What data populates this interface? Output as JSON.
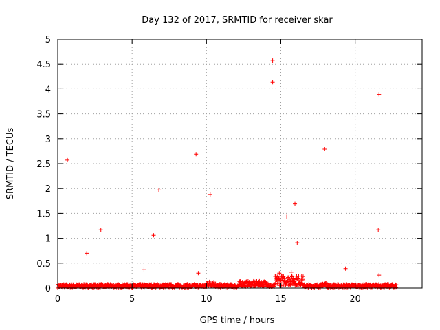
{
  "chart_data": {
    "type": "scatter",
    "title": "Day 132 of 2017, SRMTID for receiver skar",
    "xlabel": "GPS time / hours",
    "ylabel": "SRMTID / TECUs",
    "xlim": [
      0,
      24.5
    ],
    "ylim": [
      0,
      5
    ],
    "x_ticks": [
      0,
      5,
      10,
      15,
      20
    ],
    "y_ticks": [
      0,
      0.5,
      1,
      1.5,
      2,
      2.5,
      3,
      3.5,
      4,
      4.5,
      5
    ],
    "x_tick_labels": [
      "0",
      "5",
      "10",
      "15",
      "20"
    ],
    "y_tick_labels": [
      "0",
      "0.5",
      "1",
      "1.5",
      "2",
      "2.5",
      "3",
      "3.5",
      "4",
      "4.5",
      "5"
    ],
    "grid": true,
    "marker": "plus",
    "color": "#ff0000",
    "outliers": [
      {
        "x": 0.65,
        "y": 2.57
      },
      {
        "x": 1.95,
        "y": 0.7
      },
      {
        "x": 2.9,
        "y": 1.17
      },
      {
        "x": 5.8,
        "y": 0.37
      },
      {
        "x": 6.45,
        "y": 1.06
      },
      {
        "x": 6.8,
        "y": 1.97
      },
      {
        "x": 9.3,
        "y": 2.69
      },
      {
        "x": 9.45,
        "y": 0.3
      },
      {
        "x": 10.25,
        "y": 1.88
      },
      {
        "x": 14.45,
        "y": 4.57
      },
      {
        "x": 14.45,
        "y": 4.14
      },
      {
        "x": 15.4,
        "y": 1.43
      },
      {
        "x": 15.95,
        "y": 1.69
      },
      {
        "x": 16.1,
        "y": 0.91
      },
      {
        "x": 17.95,
        "y": 2.79
      },
      {
        "x": 19.35,
        "y": 0.39
      },
      {
        "x": 21.6,
        "y": 3.89
      },
      {
        "x": 21.55,
        "y": 1.17
      },
      {
        "x": 21.6,
        "y": 0.26
      },
      {
        "x": 15.7,
        "y": 0.32
      },
      {
        "x": 14.9,
        "y": 0.3
      }
    ],
    "baseline_series": {
      "x_start": 0,
      "x_end": 22.8,
      "x_step": 0.02,
      "typical_range": [
        0.0,
        0.08
      ],
      "elevated_segments": [
        {
          "x_start": 10.0,
          "x_end": 10.6,
          "range": [
            0.03,
            0.14
          ]
        },
        {
          "x_start": 12.2,
          "x_end": 14.2,
          "range": [
            0.03,
            0.14
          ]
        },
        {
          "x_start": 14.6,
          "x_end": 16.5,
          "range": [
            0.05,
            0.25
          ]
        },
        {
          "x_start": 17.8,
          "x_end": 18.1,
          "range": [
            0.03,
            0.12
          ]
        }
      ]
    }
  }
}
